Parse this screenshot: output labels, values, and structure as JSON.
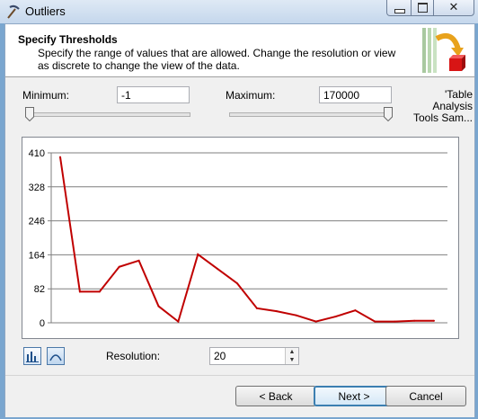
{
  "window": {
    "title": "Outliers"
  },
  "header": {
    "title": "Specify Thresholds",
    "description": "Specify the range of values that are allowed.  Change the resolution or view as discrete to change the view of the data."
  },
  "minimum": {
    "label": "Minimum:",
    "value": "-1"
  },
  "maximum": {
    "label": "Maximum:",
    "value": "170000"
  },
  "side_note": {
    "line1": "'Table",
    "line2": "Analysis",
    "line3": "Tools Sam..."
  },
  "resolution": {
    "label": "Resolution:",
    "value": "20"
  },
  "buttons": {
    "back": "< Back",
    "next": "Next >",
    "cancel": "Cancel"
  },
  "colors": {
    "line": "#c00000",
    "header_bg": "#ffffff",
    "accent": "#3c7fb1"
  },
  "chart_data": {
    "type": "line",
    "yticks": [
      410,
      328,
      246,
      164,
      82,
      0
    ],
    "ylim": [
      0,
      410
    ],
    "grid": true,
    "series": [
      {
        "values": [
          400,
          75,
          75,
          135,
          150,
          40,
          3,
          165,
          130,
          95,
          35,
          28,
          18,
          3,
          15,
          30,
          3,
          3,
          5,
          5
        ]
      }
    ]
  }
}
